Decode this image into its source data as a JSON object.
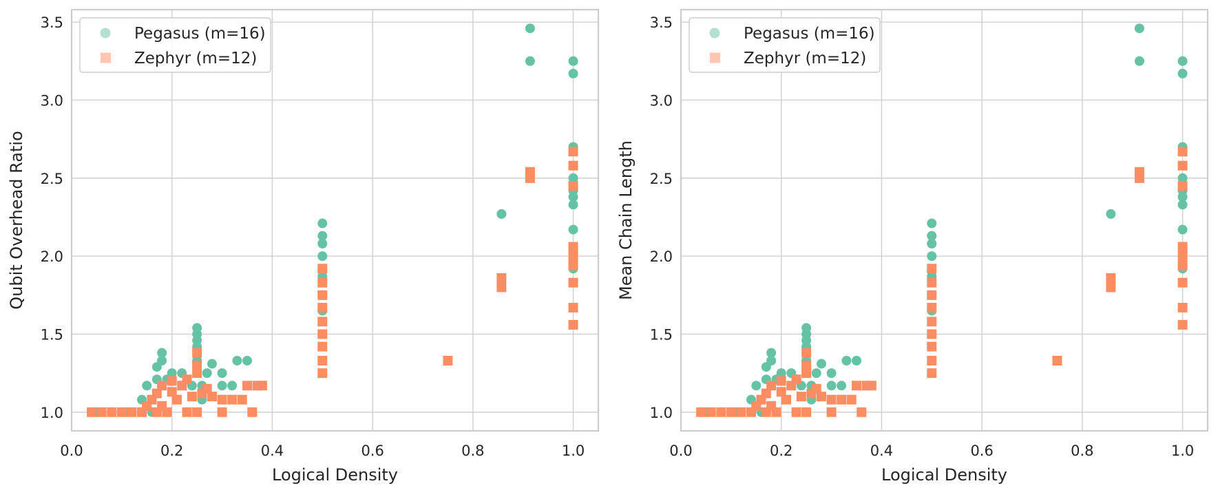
{
  "figure": {
    "colors": {
      "pegasus": "#66c2a5",
      "zephyr": "#fc8d62",
      "grid": "#d3d3d3",
      "axes_frame": "#cccccc",
      "text": "#262626",
      "background": "#ffffff"
    }
  },
  "chart_data": [
    {
      "type": "scatter",
      "xlabel": "Logical Density",
      "ylabel": "Qubit Overhead Ratio",
      "xlim": [
        0.0,
        1.05
      ],
      "ylim": [
        0.88,
        3.58
      ],
      "xticks": [
        "0.0",
        "0.2",
        "0.4",
        "0.6",
        "0.8",
        "1.0"
      ],
      "yticks": [
        "1.0",
        "1.5",
        "2.0",
        "2.5",
        "3.0",
        "3.5"
      ],
      "grid": true,
      "legend_position": "upper-left",
      "series": [
        {
          "name": "Pegasus (m=16)",
          "marker": "circle",
          "color": "#66c2a5",
          "points": [
            [
              0.05,
              1.0
            ],
            [
              0.08,
              1.0
            ],
            [
              0.11,
              1.0
            ],
            [
              0.14,
              1.0
            ],
            [
              0.14,
              1.08
            ],
            [
              0.15,
              1.17
            ],
            [
              0.16,
              1.0
            ],
            [
              0.17,
              1.21
            ],
            [
              0.17,
              1.29
            ],
            [
              0.18,
              1.33
            ],
            [
              0.18,
              1.38
            ],
            [
              0.19,
              1.21
            ],
            [
              0.2,
              1.25
            ],
            [
              0.22,
              1.25
            ],
            [
              0.23,
              1.21
            ],
            [
              0.24,
              1.17
            ],
            [
              0.25,
              1.33
            ],
            [
              0.25,
              1.42
            ],
            [
              0.25,
              1.46
            ],
            [
              0.25,
              1.5
            ],
            [
              0.25,
              1.54
            ],
            [
              0.26,
              1.17
            ],
            [
              0.26,
              1.08
            ],
            [
              0.27,
              1.25
            ],
            [
              0.28,
              1.31
            ],
            [
              0.3,
              1.17
            ],
            [
              0.3,
              1.25
            ],
            [
              0.32,
              1.17
            ],
            [
              0.33,
              1.33
            ],
            [
              0.35,
              1.33
            ],
            [
              0.5,
              1.65
            ],
            [
              0.5,
              1.75
            ],
            [
              0.5,
              1.87
            ],
            [
              0.5,
              2.0
            ],
            [
              0.5,
              2.08
            ],
            [
              0.5,
              2.13
            ],
            [
              0.5,
              2.21
            ],
            [
              0.857,
              2.27
            ],
            [
              0.914,
              3.25
            ],
            [
              0.914,
              3.46
            ],
            [
              1.0,
              1.92
            ],
            [
              1.0,
              2.17
            ],
            [
              1.0,
              2.33
            ],
            [
              1.0,
              2.38
            ],
            [
              1.0,
              2.42
            ],
            [
              1.0,
              2.5
            ],
            [
              1.0,
              2.7
            ],
            [
              1.0,
              3.17
            ],
            [
              1.0,
              3.25
            ]
          ]
        },
        {
          "name": "Zephyr (m=12)",
          "marker": "square",
          "color": "#fc8d62",
          "points": [
            [
              0.04,
              1.0
            ],
            [
              0.06,
              1.0
            ],
            [
              0.08,
              1.0
            ],
            [
              0.1,
              1.0
            ],
            [
              0.12,
              1.0
            ],
            [
              0.14,
              1.0
            ],
            [
              0.15,
              1.04
            ],
            [
              0.16,
              1.08
            ],
            [
              0.17,
              1.0
            ],
            [
              0.17,
              1.12
            ],
            [
              0.18,
              1.04
            ],
            [
              0.18,
              1.17
            ],
            [
              0.19,
              1.0
            ],
            [
              0.2,
              1.13
            ],
            [
              0.2,
              1.2
            ],
            [
              0.21,
              1.08
            ],
            [
              0.22,
              1.17
            ],
            [
              0.23,
              1.0
            ],
            [
              0.23,
              1.21
            ],
            [
              0.24,
              1.1
            ],
            [
              0.25,
              1.0
            ],
            [
              0.25,
              1.25
            ],
            [
              0.25,
              1.3
            ],
            [
              0.25,
              1.38
            ],
            [
              0.26,
              1.12
            ],
            [
              0.27,
              1.15
            ],
            [
              0.28,
              1.1
            ],
            [
              0.3,
              1.0
            ],
            [
              0.3,
              1.08
            ],
            [
              0.32,
              1.08
            ],
            [
              0.34,
              1.08
            ],
            [
              0.35,
              1.17
            ],
            [
              0.36,
              1.0
            ],
            [
              0.37,
              1.17
            ],
            [
              0.38,
              1.17
            ],
            [
              0.5,
              1.25
            ],
            [
              0.5,
              1.33
            ],
            [
              0.5,
              1.42
            ],
            [
              0.5,
              1.5
            ],
            [
              0.5,
              1.58
            ],
            [
              0.5,
              1.67
            ],
            [
              0.5,
              1.75
            ],
            [
              0.5,
              1.83
            ],
            [
              0.5,
              1.92
            ],
            [
              0.75,
              1.33
            ],
            [
              0.857,
              1.8
            ],
            [
              0.857,
              1.86
            ],
            [
              0.914,
              2.5
            ],
            [
              0.914,
              2.54
            ],
            [
              1.0,
              1.56
            ],
            [
              1.0,
              1.67
            ],
            [
              1.0,
              1.83
            ],
            [
              1.0,
              1.94
            ],
            [
              1.0,
              2.0
            ],
            [
              1.0,
              2.06
            ],
            [
              1.0,
              2.45
            ],
            [
              1.0,
              2.58
            ],
            [
              1.0,
              2.67
            ]
          ]
        }
      ]
    },
    {
      "type": "scatter",
      "xlabel": "Logical Density",
      "ylabel": "Mean Chain Length",
      "xlim": [
        0.0,
        1.05
      ],
      "ylim": [
        0.88,
        3.58
      ],
      "xticks": [
        "0.0",
        "0.2",
        "0.4",
        "0.6",
        "0.8",
        "1.0"
      ],
      "yticks": [
        "1.0",
        "1.5",
        "2.0",
        "2.5",
        "3.0",
        "3.5"
      ],
      "grid": true,
      "legend_position": "upper-left",
      "series": [
        {
          "name": "Pegasus (m=16)",
          "marker": "circle",
          "color": "#66c2a5",
          "points": [
            [
              0.05,
              1.0
            ],
            [
              0.08,
              1.0
            ],
            [
              0.11,
              1.0
            ],
            [
              0.14,
              1.0
            ],
            [
              0.14,
              1.08
            ],
            [
              0.15,
              1.17
            ],
            [
              0.16,
              1.0
            ],
            [
              0.17,
              1.21
            ],
            [
              0.17,
              1.29
            ],
            [
              0.18,
              1.33
            ],
            [
              0.18,
              1.38
            ],
            [
              0.19,
              1.21
            ],
            [
              0.2,
              1.25
            ],
            [
              0.22,
              1.25
            ],
            [
              0.23,
              1.21
            ],
            [
              0.24,
              1.17
            ],
            [
              0.25,
              1.33
            ],
            [
              0.25,
              1.42
            ],
            [
              0.25,
              1.46
            ],
            [
              0.25,
              1.5
            ],
            [
              0.25,
              1.54
            ],
            [
              0.26,
              1.17
            ],
            [
              0.26,
              1.08
            ],
            [
              0.27,
              1.25
            ],
            [
              0.28,
              1.31
            ],
            [
              0.3,
              1.17
            ],
            [
              0.3,
              1.25
            ],
            [
              0.32,
              1.17
            ],
            [
              0.33,
              1.33
            ],
            [
              0.35,
              1.33
            ],
            [
              0.5,
              1.65
            ],
            [
              0.5,
              1.75
            ],
            [
              0.5,
              1.87
            ],
            [
              0.5,
              2.0
            ],
            [
              0.5,
              2.08
            ],
            [
              0.5,
              2.13
            ],
            [
              0.5,
              2.21
            ],
            [
              0.857,
              2.27
            ],
            [
              0.914,
              3.25
            ],
            [
              0.914,
              3.46
            ],
            [
              1.0,
              1.92
            ],
            [
              1.0,
              2.17
            ],
            [
              1.0,
              2.33
            ],
            [
              1.0,
              2.38
            ],
            [
              1.0,
              2.42
            ],
            [
              1.0,
              2.5
            ],
            [
              1.0,
              2.7
            ],
            [
              1.0,
              3.17
            ],
            [
              1.0,
              3.25
            ]
          ]
        },
        {
          "name": "Zephyr (m=12)",
          "marker": "square",
          "color": "#fc8d62",
          "points": [
            [
              0.04,
              1.0
            ],
            [
              0.06,
              1.0
            ],
            [
              0.08,
              1.0
            ],
            [
              0.1,
              1.0
            ],
            [
              0.12,
              1.0
            ],
            [
              0.14,
              1.0
            ],
            [
              0.15,
              1.04
            ],
            [
              0.16,
              1.08
            ],
            [
              0.17,
              1.0
            ],
            [
              0.17,
              1.12
            ],
            [
              0.18,
              1.04
            ],
            [
              0.18,
              1.17
            ],
            [
              0.19,
              1.0
            ],
            [
              0.2,
              1.13
            ],
            [
              0.2,
              1.2
            ],
            [
              0.21,
              1.08
            ],
            [
              0.22,
              1.17
            ],
            [
              0.23,
              1.0
            ],
            [
              0.23,
              1.21
            ],
            [
              0.24,
              1.1
            ],
            [
              0.25,
              1.0
            ],
            [
              0.25,
              1.25
            ],
            [
              0.25,
              1.3
            ],
            [
              0.25,
              1.38
            ],
            [
              0.26,
              1.12
            ],
            [
              0.27,
              1.15
            ],
            [
              0.28,
              1.1
            ],
            [
              0.3,
              1.0
            ],
            [
              0.3,
              1.08
            ],
            [
              0.32,
              1.08
            ],
            [
              0.34,
              1.08
            ],
            [
              0.35,
              1.17
            ],
            [
              0.36,
              1.0
            ],
            [
              0.37,
              1.17
            ],
            [
              0.38,
              1.17
            ],
            [
              0.5,
              1.25
            ],
            [
              0.5,
              1.33
            ],
            [
              0.5,
              1.42
            ],
            [
              0.5,
              1.5
            ],
            [
              0.5,
              1.58
            ],
            [
              0.5,
              1.67
            ],
            [
              0.5,
              1.75
            ],
            [
              0.5,
              1.83
            ],
            [
              0.5,
              1.92
            ],
            [
              0.75,
              1.33
            ],
            [
              0.857,
              1.8
            ],
            [
              0.857,
              1.86
            ],
            [
              0.914,
              2.5
            ],
            [
              0.914,
              2.54
            ],
            [
              1.0,
              1.56
            ],
            [
              1.0,
              1.67
            ],
            [
              1.0,
              1.83
            ],
            [
              1.0,
              1.94
            ],
            [
              1.0,
              2.0
            ],
            [
              1.0,
              2.06
            ],
            [
              1.0,
              2.45
            ],
            [
              1.0,
              2.58
            ],
            [
              1.0,
              2.67
            ]
          ]
        }
      ]
    }
  ]
}
